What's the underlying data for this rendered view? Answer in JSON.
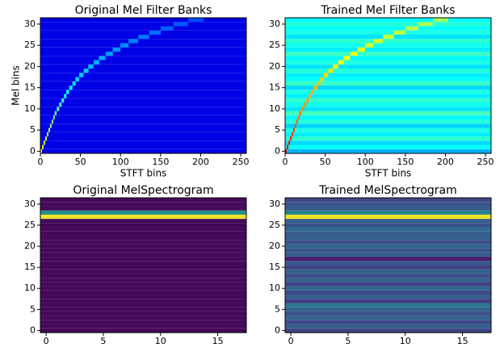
{
  "chart_data": [
    {
      "type": "heatmap",
      "title": "Original Mel Filter Banks",
      "xlabel": "STFT bins",
      "ylabel": "Mel bins",
      "colormap": "jet",
      "xlim": [
        0,
        257
      ],
      "ylim": [
        -0.5,
        31.5
      ],
      "xticks": [
        0,
        50,
        100,
        150,
        200,
        250
      ],
      "yticks": [
        0,
        5,
        10,
        15,
        20,
        25,
        30
      ],
      "peak_bins": [
        1,
        3,
        5,
        7,
        9,
        11,
        13,
        15,
        17,
        19,
        22,
        25,
        28,
        31,
        34,
        38,
        42,
        46,
        51,
        57,
        63,
        70,
        77,
        86,
        95,
        105,
        116,
        129,
        143,
        158,
        175,
        194
      ],
      "peak_levels": [
        0.62,
        0.6,
        0.58,
        0.57,
        0.55,
        0.54,
        0.52,
        0.5,
        0.48,
        0.47,
        0.45,
        0.43,
        0.42,
        0.4,
        0.38,
        0.37,
        0.35,
        0.34,
        0.33,
        0.32,
        0.31,
        0.3,
        0.29,
        0.28,
        0.27,
        0.26,
        0.25,
        0.24,
        0.23,
        0.22,
        0.21,
        0.2
      ],
      "row_levels": [
        0.1,
        0.1,
        0.1,
        0.1,
        0.1,
        0.1,
        0.1,
        0.1,
        0.1,
        0.1,
        0.1,
        0.1,
        0.1,
        0.1,
        0.1,
        0.1,
        0.1,
        0.1,
        0.1,
        0.1,
        0.1,
        0.1,
        0.1,
        0.1,
        0.1,
        0.1,
        0.1,
        0.1,
        0.1,
        0.1,
        0.1,
        0.1
      ]
    },
    {
      "type": "heatmap",
      "title": "Trained Mel Filter Banks",
      "xlabel": "STFT bins",
      "colormap": "jet",
      "xlim": [
        0,
        257
      ],
      "ylim": [
        -0.5,
        31.5
      ],
      "xticks": [
        0,
        50,
        100,
        150,
        200,
        250
      ],
      "yticks": [
        0,
        5,
        10,
        15,
        20,
        25,
        30
      ],
      "peak_bins": [
        1,
        3,
        5,
        7,
        9,
        11,
        13,
        15,
        17,
        19,
        22,
        25,
        28,
        31,
        34,
        38,
        42,
        46,
        51,
        57,
        63,
        70,
        77,
        86,
        95,
        105,
        116,
        129,
        143,
        158,
        175,
        194
      ],
      "peak_levels": [
        0.9,
        0.88,
        0.86,
        0.85,
        0.83,
        0.82,
        0.8,
        0.78,
        0.77,
        0.76,
        0.74,
        0.73,
        0.72,
        0.7,
        0.7,
        0.69,
        0.68,
        0.67,
        0.66,
        0.65,
        0.64,
        0.63,
        0.62,
        0.61,
        0.6,
        0.59,
        0.58,
        0.57,
        0.56,
        0.55,
        0.54,
        0.53
      ],
      "row_levels": [
        0.3,
        0.38,
        0.34,
        0.42,
        0.36,
        0.4,
        0.33,
        0.41,
        0.37,
        0.44,
        0.35,
        0.39,
        0.42,
        0.36,
        0.4,
        0.34,
        0.43,
        0.38,
        0.36,
        0.41,
        0.35,
        0.4,
        0.37,
        0.43,
        0.36,
        0.39,
        0.42,
        0.35,
        0.4,
        0.38,
        0.41,
        0.37
      ]
    },
    {
      "type": "heatmap",
      "title": "Original MelSpectrogram",
      "colormap": "viridis",
      "xlim": [
        -0.5,
        17.5
      ],
      "ylim": [
        -0.5,
        31.5
      ],
      "xticks": [
        0,
        5,
        10,
        15
      ],
      "yticks": [
        0,
        5,
        10,
        15,
        20,
        25,
        30
      ],
      "row_levels": [
        0.02,
        0.02,
        0.02,
        0.02,
        0.02,
        0.02,
        0.02,
        0.02,
        0.02,
        0.02,
        0.02,
        0.02,
        0.02,
        0.02,
        0.02,
        0.02,
        0.02,
        0.02,
        0.02,
        0.02,
        0.02,
        0.02,
        0.02,
        0.02,
        0.02,
        0.02,
        0.02,
        0.98,
        0.5,
        0.02,
        0.02,
        0.02
      ]
    },
    {
      "type": "heatmap",
      "title": "Trained MelSpectrogram",
      "colormap": "viridis",
      "xlim": [
        -0.5,
        17.5
      ],
      "ylim": [
        -0.5,
        31.5
      ],
      "xticks": [
        0,
        5,
        10,
        15
      ],
      "yticks": [
        0,
        5,
        10,
        15,
        20,
        25,
        30
      ],
      "row_levels": [
        0.2,
        0.3,
        0.22,
        0.32,
        0.25,
        0.3,
        0.4,
        0.18,
        0.3,
        0.22,
        0.33,
        0.2,
        0.3,
        0.24,
        0.32,
        0.2,
        0.28,
        0.08,
        0.3,
        0.26,
        0.32,
        0.24,
        0.3,
        0.28,
        0.34,
        0.26,
        0.3,
        0.98,
        0.45,
        0.28,
        0.26,
        0.22
      ]
    }
  ]
}
